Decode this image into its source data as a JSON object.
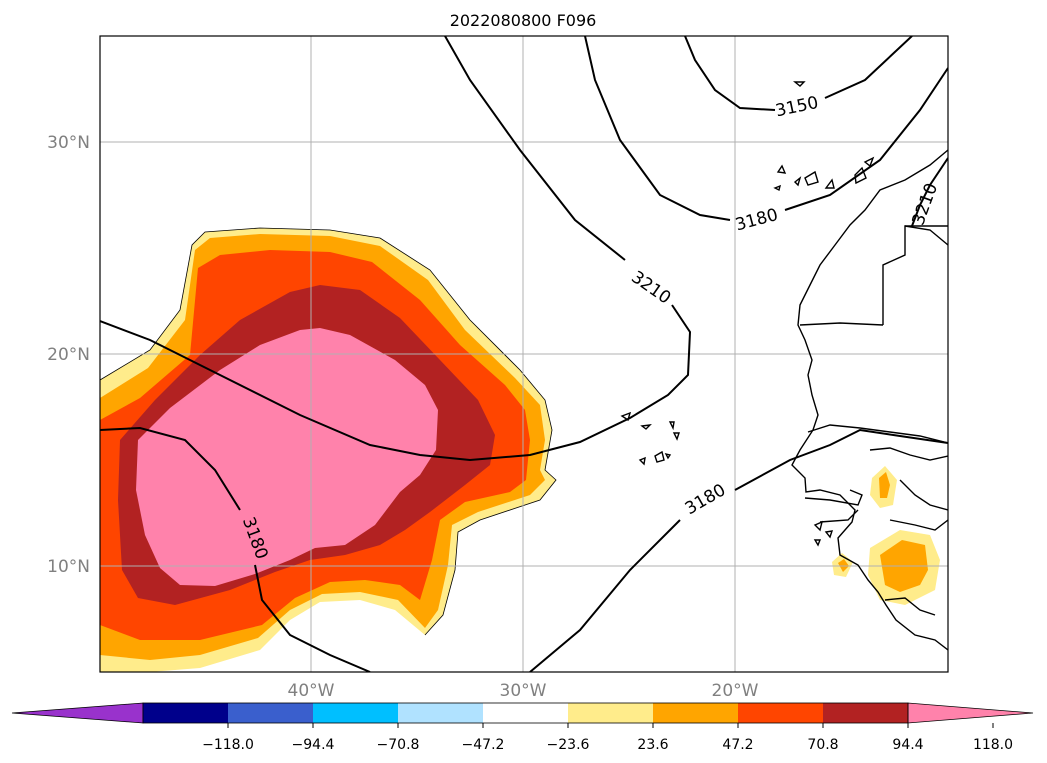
{
  "title": "2022080800 F096",
  "map": {
    "lat_labels": [
      "30°N",
      "20°N",
      "10°N"
    ],
    "lon_labels": [
      "40°W",
      "30°W",
      "20°W"
    ],
    "extent": {
      "lon_min": -50,
      "lon_max": -10,
      "lat_min": 5,
      "lat_max": 35
    },
    "gridlines": true,
    "contour_labels": [
      "3150",
      "3180",
      "3210",
      "3210",
      "3180",
      "3180"
    ]
  },
  "colorbar": {
    "ticks": [
      "−118.0",
      "−94.4",
      "−70.8",
      "−47.2",
      "−23.6",
      "23.6",
      "47.2",
      "70.8",
      "94.4",
      "118.0"
    ],
    "colors": [
      "#9932cc",
      "#00008b",
      "#3a5fcd",
      "#00bfff",
      "#b0e2ff",
      "#ffffff",
      "#ffec8b",
      "#ffa500",
      "#ff4500",
      "#b22222",
      "#ff82ab"
    ],
    "extend": "both"
  }
}
